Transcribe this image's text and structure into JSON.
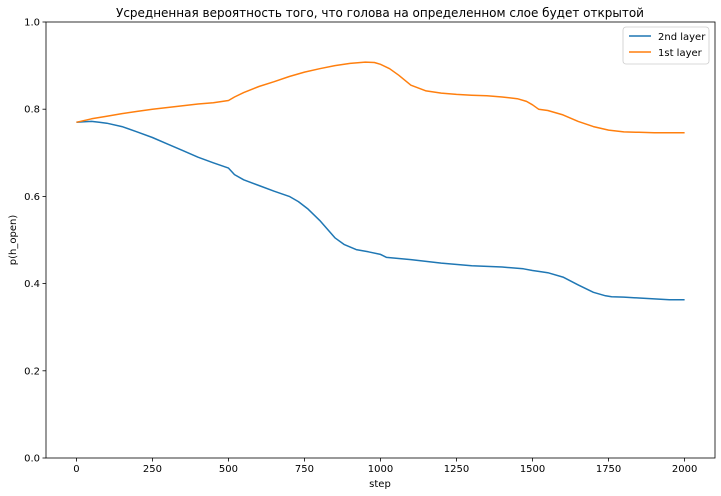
{
  "chart_data": {
    "type": "line",
    "title": "Усредненная вероятность того, что голова на определенном слое будет открытой",
    "xlabel": "step",
    "ylabel": "p(h_open)",
    "xlim": [
      -100,
      2100
    ],
    "ylim": [
      0.0,
      1.0
    ],
    "xticks": [
      0,
      250,
      500,
      750,
      1000,
      1250,
      1500,
      1750,
      2000
    ],
    "yticks": [
      0.0,
      0.2,
      0.4,
      0.6,
      0.8,
      1.0
    ],
    "xtick_labels": [
      "0",
      "250",
      "500",
      "750",
      "1000",
      "1250",
      "1500",
      "1750",
      "2000"
    ],
    "ytick_labels": [
      "0.0",
      "0.2",
      "0.4",
      "0.6",
      "0.8",
      "1.0"
    ],
    "grid": false,
    "legend_position": "top-right",
    "series": [
      {
        "name": "2nd layer",
        "color": "#1f77b4",
        "x": [
          0,
          25,
          50,
          75,
          100,
          150,
          200,
          250,
          300,
          350,
          400,
          450,
          500,
          520,
          550,
          600,
          650,
          700,
          730,
          760,
          800,
          850,
          880,
          920,
          960,
          1000,
          1020,
          1100,
          1200,
          1300,
          1400,
          1470,
          1500,
          1520,
          1550,
          1600,
          1650,
          1700,
          1740,
          1760,
          1800,
          1850,
          1900,
          1950,
          2000
        ],
        "y": [
          0.77,
          0.771,
          0.772,
          0.77,
          0.768,
          0.76,
          0.748,
          0.735,
          0.72,
          0.705,
          0.69,
          0.677,
          0.665,
          0.65,
          0.638,
          0.625,
          0.612,
          0.6,
          0.588,
          0.572,
          0.545,
          0.505,
          0.49,
          0.478,
          0.473,
          0.467,
          0.46,
          0.455,
          0.447,
          0.441,
          0.438,
          0.434,
          0.43,
          0.428,
          0.425,
          0.415,
          0.397,
          0.38,
          0.372,
          0.37,
          0.369,
          0.367,
          0.365,
          0.363,
          0.363
        ]
      },
      {
        "name": "1st layer",
        "color": "#ff7f0e",
        "x": [
          0,
          50,
          100,
          150,
          200,
          250,
          300,
          350,
          400,
          450,
          500,
          520,
          550,
          600,
          650,
          700,
          750,
          800,
          850,
          900,
          950,
          980,
          1000,
          1030,
          1060,
          1100,
          1150,
          1200,
          1250,
          1300,
          1350,
          1400,
          1450,
          1480,
          1500,
          1520,
          1550,
          1600,
          1650,
          1700,
          1750,
          1800,
          1850,
          1900,
          1950,
          2000
        ],
        "y": [
          0.77,
          0.778,
          0.784,
          0.79,
          0.795,
          0.8,
          0.804,
          0.808,
          0.812,
          0.815,
          0.82,
          0.828,
          0.838,
          0.852,
          0.863,
          0.875,
          0.885,
          0.893,
          0.9,
          0.905,
          0.908,
          0.907,
          0.903,
          0.893,
          0.878,
          0.855,
          0.842,
          0.837,
          0.834,
          0.832,
          0.831,
          0.828,
          0.824,
          0.818,
          0.81,
          0.8,
          0.797,
          0.787,
          0.772,
          0.76,
          0.752,
          0.748,
          0.747,
          0.746,
          0.746,
          0.746
        ]
      }
    ]
  }
}
